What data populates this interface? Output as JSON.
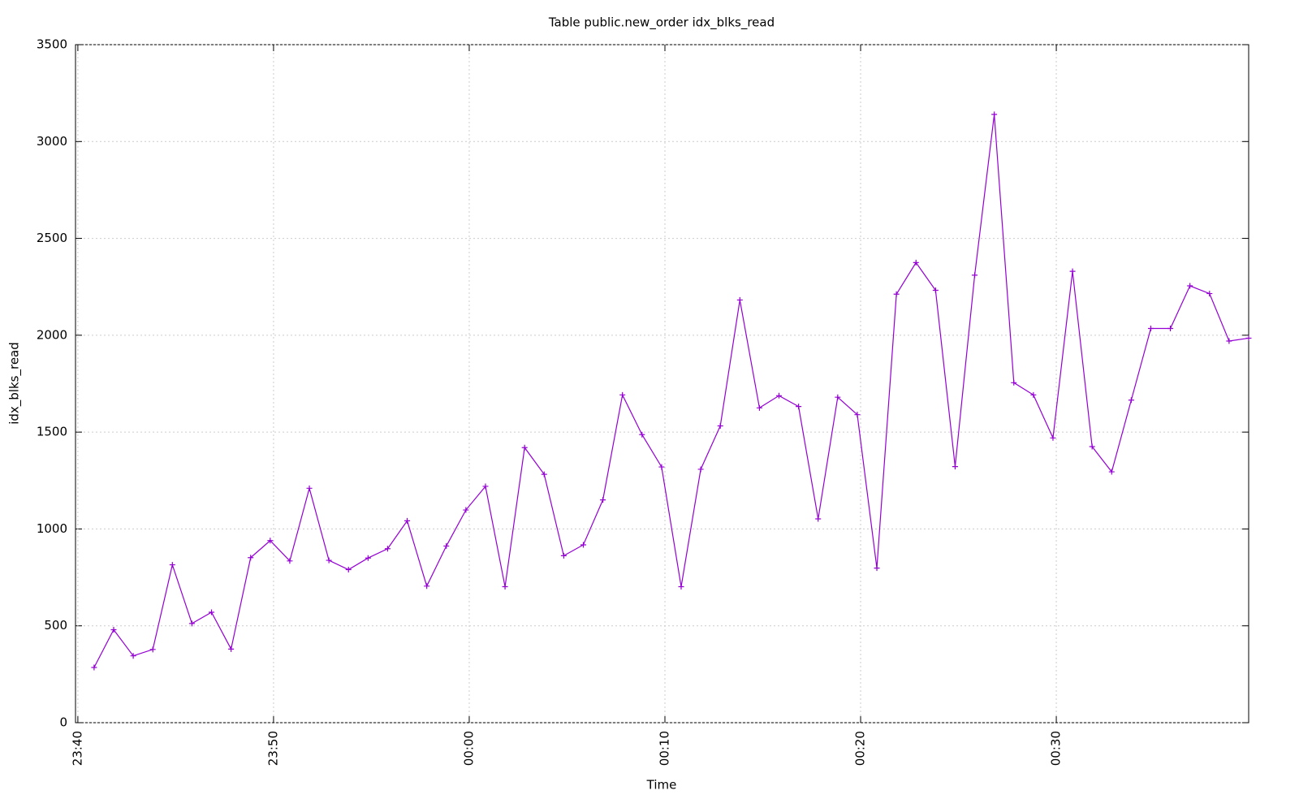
{
  "chart_data": {
    "type": "line",
    "title": "Table public.new_order idx_blks_read",
    "x_label": "Time",
    "y_label": "idx_blks_read",
    "x": [
      1420.83,
      1421.83,
      1422.83,
      1423.83,
      1424.83,
      1425.83,
      1426.83,
      1427.83,
      1428.83,
      1429.83,
      1430.83,
      1431.83,
      1432.83,
      1433.83,
      1434.83,
      1435.83,
      1436.83,
      1437.83,
      1438.83,
      1439.83,
      1440.83,
      1441.83,
      1442.83,
      1443.83,
      1444.83,
      1445.83,
      1446.83,
      1447.83,
      1448.83,
      1449.83,
      1450.83,
      1451.83,
      1452.83,
      1453.83,
      1454.83,
      1455.83,
      1456.83,
      1457.83,
      1458.83,
      1459.83,
      1460.83,
      1461.83,
      1462.83,
      1463.83,
      1464.83,
      1465.83,
      1466.83,
      1467.83,
      1468.83,
      1469.83,
      1470.83,
      1471.83,
      1472.83,
      1473.83,
      1474.83,
      1475.83,
      1476.83,
      1477.83,
      1478.83,
      1479.83
    ],
    "series": [
      {
        "name": "idx_blks_read",
        "color": "#9400d3",
        "values": [
          285,
          480,
          345,
          378,
          815,
          512,
          570,
          380,
          852,
          940,
          835,
          1210,
          838,
          790,
          850,
          898,
          1042,
          705,
          912,
          1098,
          1220,
          702,
          1420,
          1282,
          862,
          918,
          1150,
          1692,
          1487,
          1320,
          702,
          1308,
          1532,
          2182,
          1625,
          1688,
          1632,
          1052,
          1680,
          1590,
          798,
          2212,
          2375,
          2232,
          1322,
          2310,
          3140,
          1755,
          1692,
          1470,
          2330,
          1425,
          1295,
          1665,
          2035,
          2035,
          2255,
          2215,
          1970,
          1985
        ]
      }
    ],
    "xlim": [
      1419.88,
      1479.83
    ],
    "xticks": [
      {
        "value": 1420,
        "label": "23:40"
      },
      {
        "value": 1430,
        "label": "23:50"
      },
      {
        "value": 1440,
        "label": "00:00"
      },
      {
        "value": 1450,
        "label": "00:10"
      },
      {
        "value": 1460,
        "label": "00:20"
      },
      {
        "value": 1470,
        "label": "00:30"
      }
    ],
    "ylim": [
      0,
      3500
    ],
    "yticks": [
      0,
      500,
      1000,
      1500,
      2000,
      2500,
      3000,
      3500
    ],
    "grid": true
  }
}
